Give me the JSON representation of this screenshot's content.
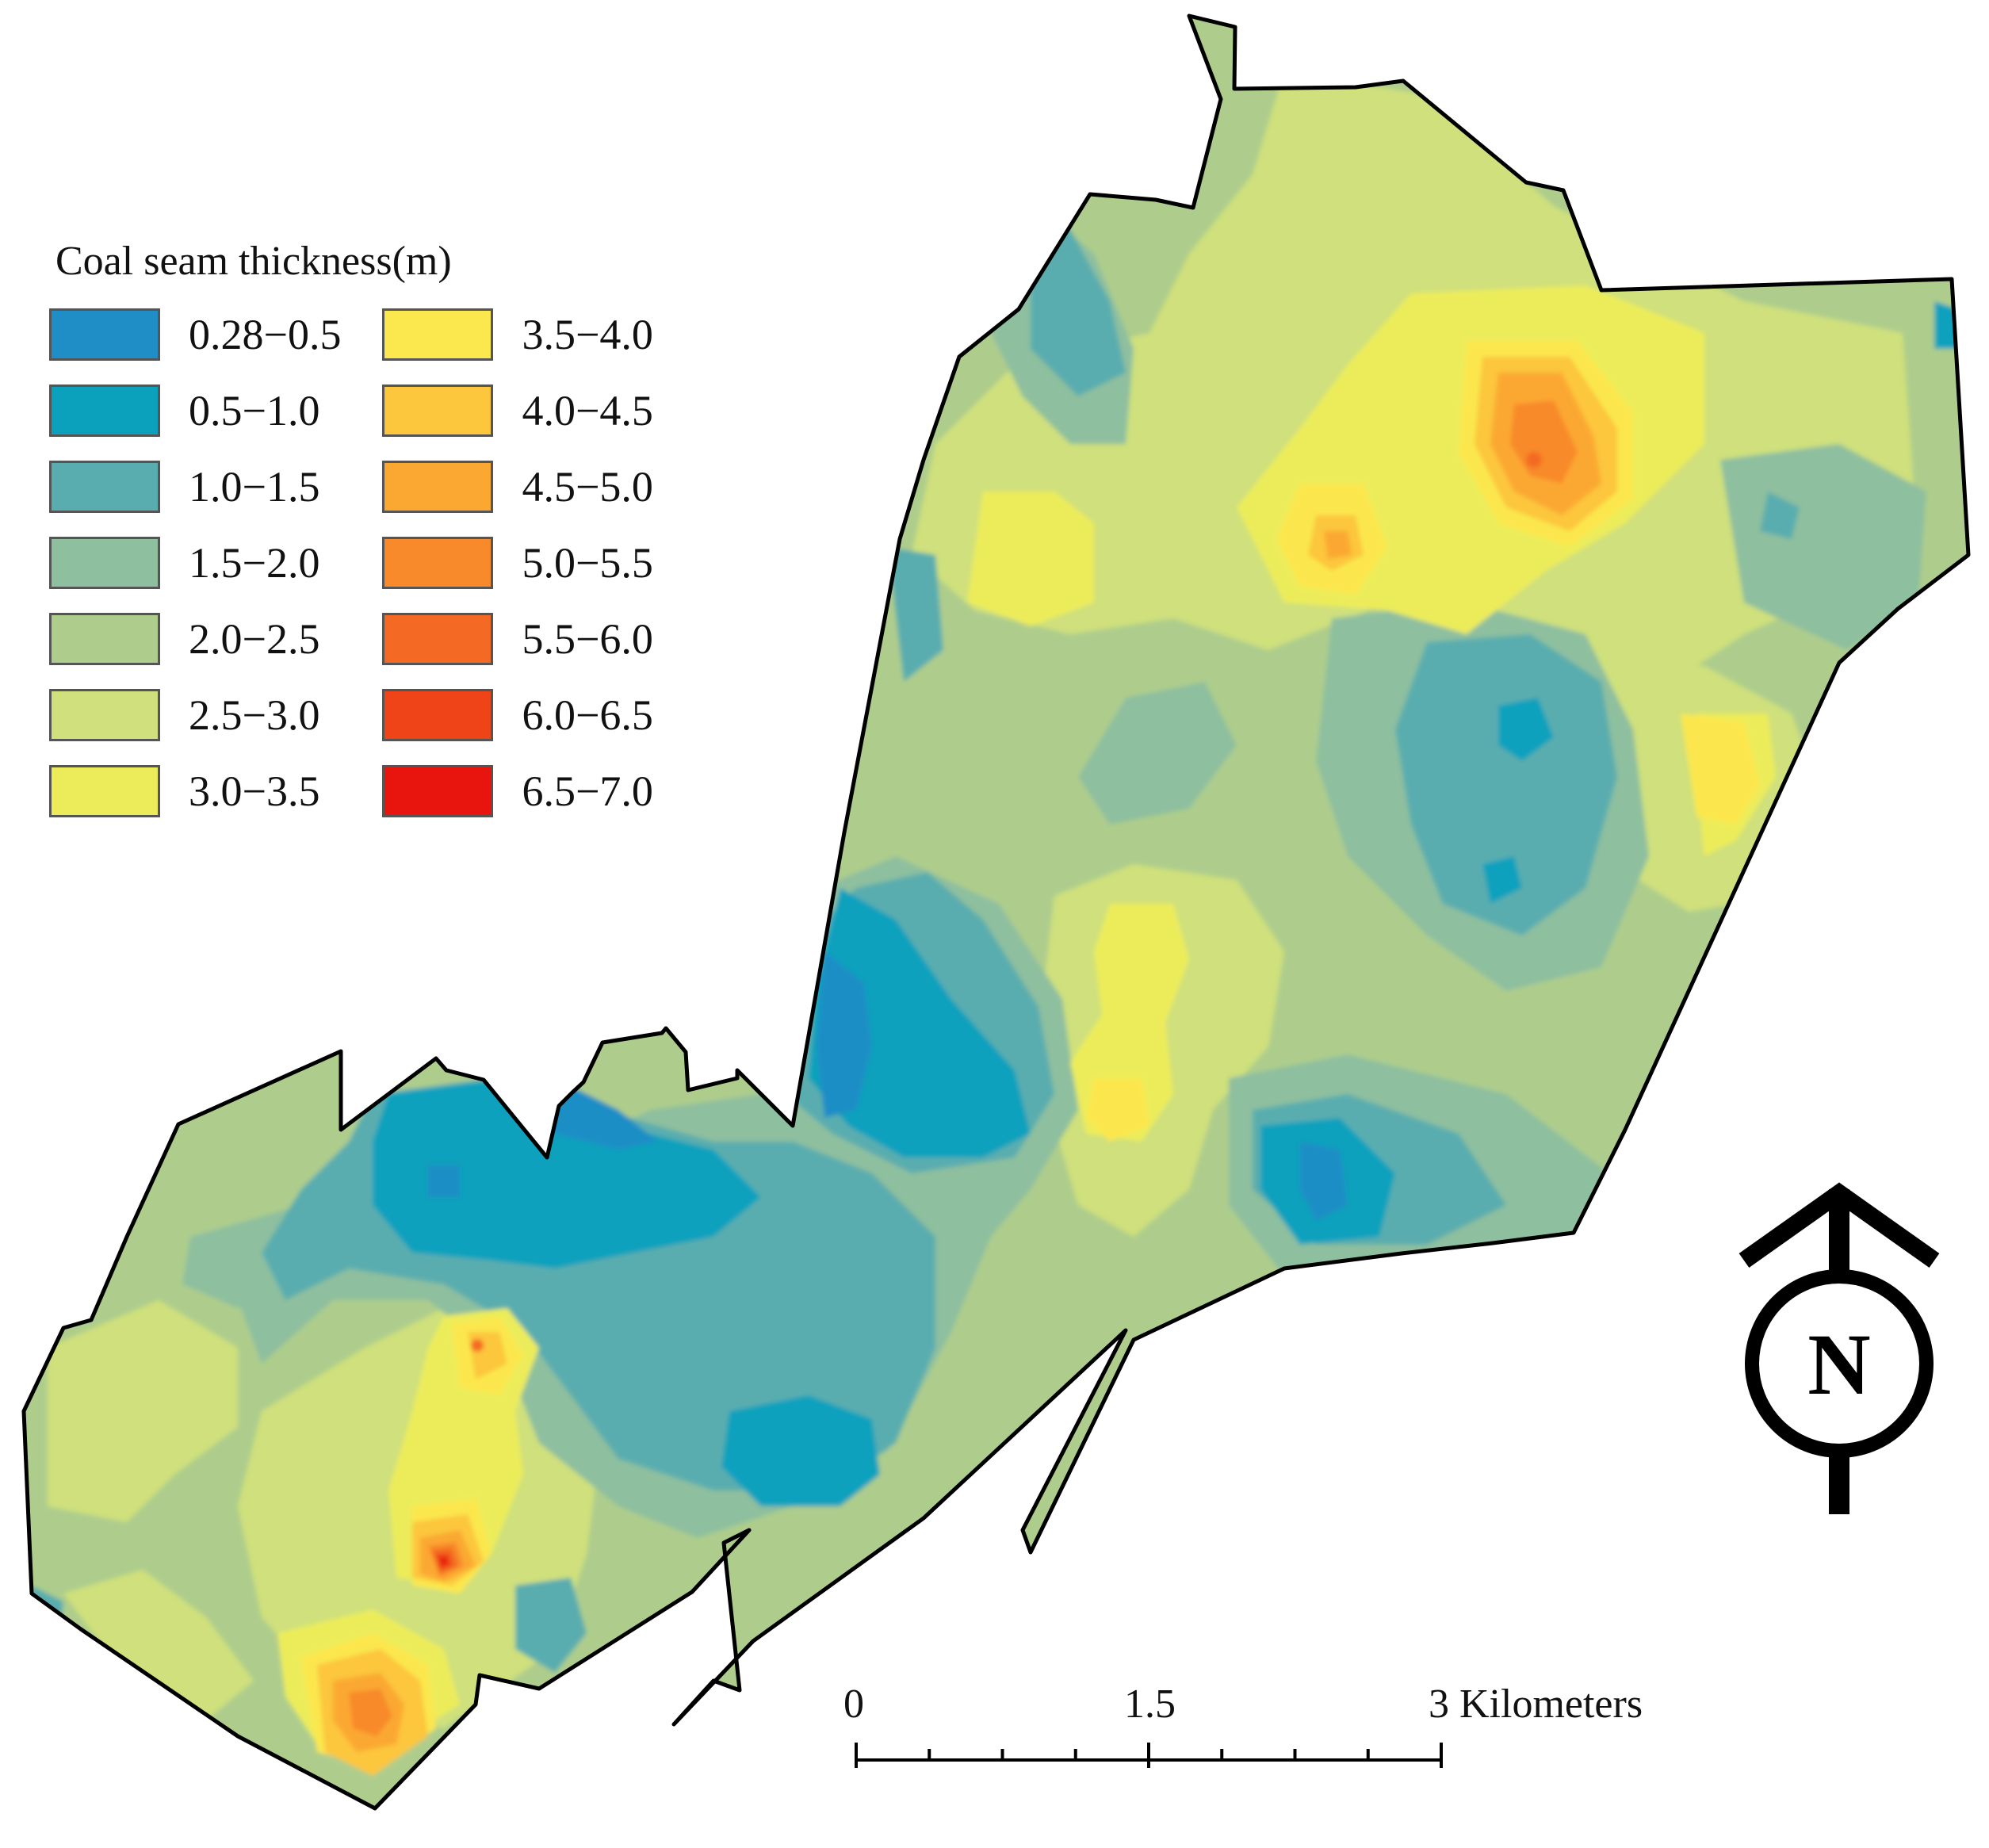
{
  "legend": {
    "title": "Coal seam thickness(m)",
    "classes": [
      {
        "label": "0.28−0.5",
        "color": "#1f8ec6"
      },
      {
        "label": "0.5−1.0",
        "color": "#0ba1bd"
      },
      {
        "label": "1.0−1.5",
        "color": "#5aadaf"
      },
      {
        "label": "1.5−2.0",
        "color": "#8ebf9f"
      },
      {
        "label": "2.0−2.5",
        "color": "#aecd8c"
      },
      {
        "label": "2.5−3.0",
        "color": "#cfe07c"
      },
      {
        "label": "3.0−3.5",
        "color": "#ecec5a"
      },
      {
        "label": "3.5−4.0",
        "color": "#fbe74e"
      },
      {
        "label": "4.0−4.5",
        "color": "#fcc63d"
      },
      {
        "label": "4.5−5.0",
        "color": "#fba832"
      },
      {
        "label": "5.0−5.5",
        "color": "#f88a2c"
      },
      {
        "label": "5.5−6.0",
        "color": "#f46a24"
      },
      {
        "label": "6.0−6.5",
        "color": "#ef4318"
      },
      {
        "label": "6.5−7.0",
        "color": "#e8140e"
      }
    ]
  },
  "scale_bar": {
    "ticks": [
      "0",
      "1.5",
      "3 Kilometers"
    ]
  },
  "north_arrow": {
    "letter": "N"
  }
}
